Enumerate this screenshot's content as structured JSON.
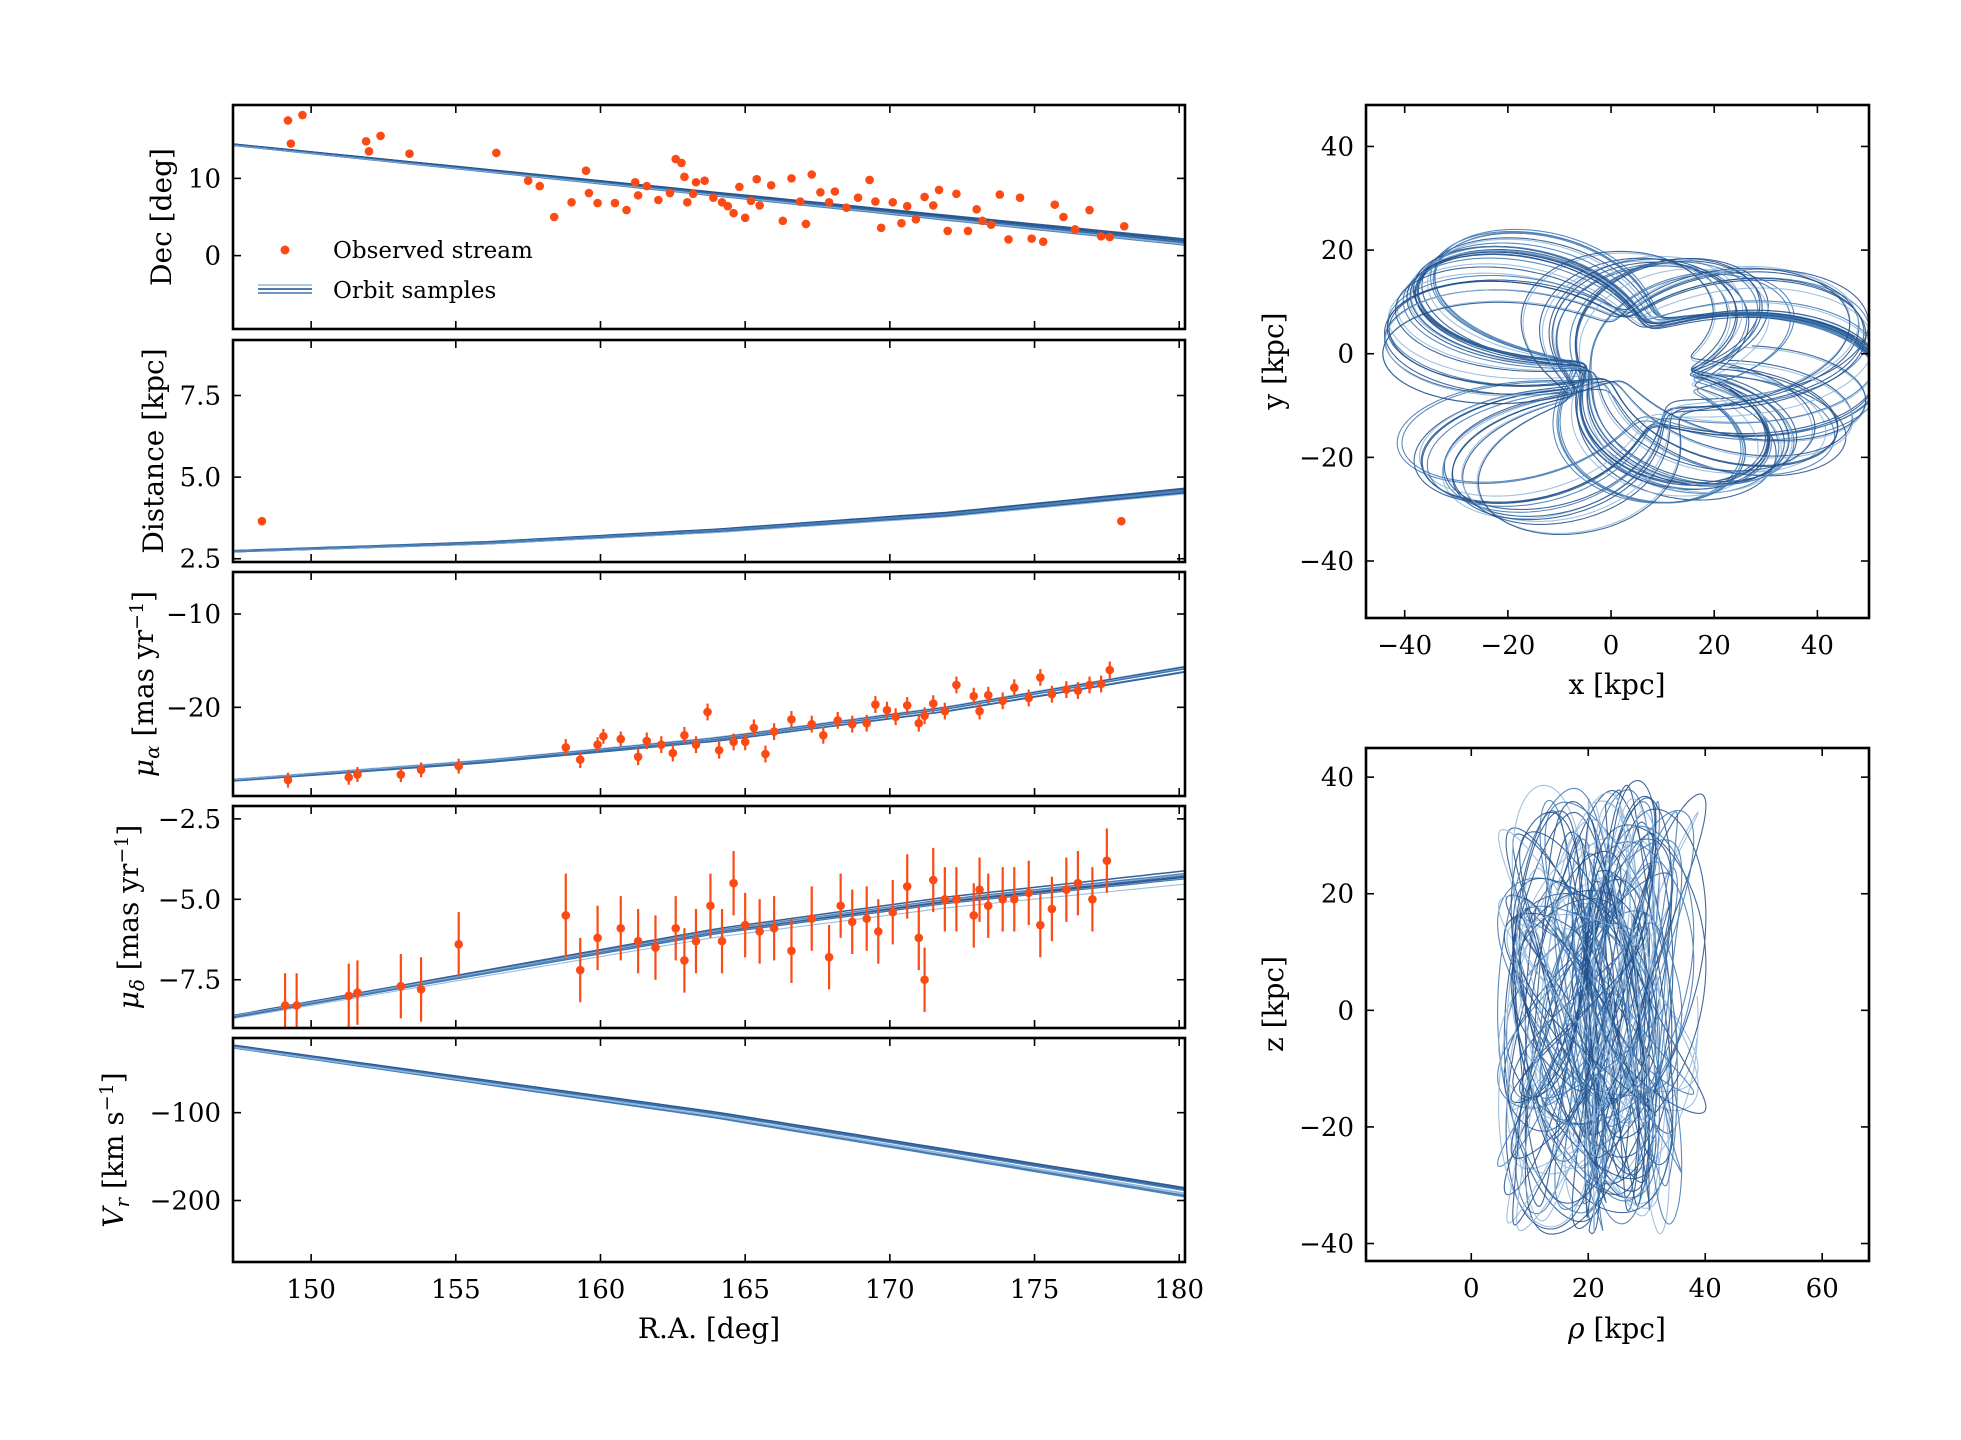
{
  "colors": {
    "observed": "#fc4a14",
    "orbit_dark": "#1f4e8a",
    "orbit_mid": "#3d75b0",
    "orbit_light": "#8fb6dc"
  },
  "chart_data": [
    {
      "id": "dec",
      "type": "scatter+line",
      "ylabel": "Dec [deg]",
      "xlim": [
        147.3,
        180.2
      ],
      "ylim": [
        -9.5,
        19.5
      ],
      "yticks": [
        0,
        10
      ],
      "ytick_labels": [
        "0",
        "10"
      ],
      "legend": {
        "placement": "lower-left",
        "entries": [
          "Observed stream",
          "Orbit samples"
        ]
      },
      "orbit": {
        "x": [
          148,
          180
        ],
        "y": [
          14.1,
          1.9
        ],
        "spread": 0.35
      },
      "observed": {
        "ra": [
          149.2,
          149.3,
          149.7,
          151.9,
          152.0,
          152.4,
          153.4,
          156.4,
          157.5,
          157.9,
          158.4,
          159.0,
          159.5,
          159.6,
          159.9,
          160.5,
          160.9,
          161.2,
          161.3,
          161.6,
          162.0,
          162.4,
          162.6,
          162.8,
          162.9,
          163.0,
          163.2,
          163.3,
          163.6,
          163.9,
          164.2,
          164.4,
          164.6,
          164.8,
          165.0,
          165.2,
          165.4,
          165.5,
          165.9,
          166.3,
          166.6,
          166.9,
          167.1,
          167.3,
          167.6,
          167.9,
          168.1,
          168.5,
          168.9,
          169.3,
          169.5,
          169.7,
          170.1,
          170.4,
          170.6,
          170.9,
          171.2,
          171.5,
          171.7,
          172.0,
          172.3,
          172.7,
          173.0,
          173.2,
          173.5,
          173.8,
          174.1,
          174.5,
          174.9,
          175.3,
          175.7,
          176.0,
          176.4,
          176.9,
          177.3,
          177.6,
          178.1
        ],
        "dec": [
          17.5,
          14.5,
          18.2,
          14.8,
          13.5,
          15.5,
          13.2,
          13.3,
          9.7,
          9.0,
          5.0,
          6.9,
          11.0,
          8.1,
          6.8,
          6.8,
          5.9,
          9.5,
          7.8,
          9.0,
          7.2,
          8.1,
          12.5,
          12.0,
          10.2,
          6.9,
          8.0,
          9.5,
          9.7,
          7.5,
          6.9,
          6.4,
          5.5,
          8.9,
          4.9,
          7.1,
          9.9,
          6.5,
          9.1,
          4.5,
          10.0,
          7.0,
          4.1,
          10.5,
          8.2,
          6.9,
          8.3,
          6.2,
          7.5,
          9.8,
          7.0,
          3.6,
          6.9,
          4.2,
          6.4,
          4.7,
          7.6,
          6.5,
          8.5,
          3.2,
          8.0,
          3.2,
          6.0,
          4.5,
          4.0,
          7.9,
          2.1,
          7.5,
          2.2,
          1.8,
          6.6,
          5.0,
          3.4,
          5.9,
          2.5,
          2.4,
          3.8
        ]
      }
    },
    {
      "id": "distance",
      "type": "scatter+line",
      "ylabel": "Distance [kpc]",
      "xlim": [
        147.3,
        180.2
      ],
      "ylim": [
        2.4,
        9.2
      ],
      "yticks": [
        2.5,
        5.0,
        7.5
      ],
      "ytick_labels": [
        "2.5",
        "5.0",
        "7.5"
      ],
      "orbit": {
        "x": [
          148,
          156,
          164,
          172,
          180
        ],
        "y": [
          2.75,
          2.98,
          3.35,
          3.85,
          4.55
        ],
        "spread": 0.07
      },
      "observed": {
        "ra": [
          148.3,
          178.0
        ],
        "dist": [
          3.65,
          3.65
        ]
      }
    },
    {
      "id": "pmra",
      "type": "errorbar+line",
      "ylabel_main": "μ",
      "ylabel_sub": "α",
      "ylabel_rest": " [mas yr",
      "ylabel_sup": "−1",
      "ylabel_end": "]",
      "xlim": [
        147.3,
        180.2
      ],
      "ylim": [
        -29.5,
        -5.5
      ],
      "yticks": [
        -20,
        -10
      ],
      "ytick_labels": [
        "−20",
        "−10"
      ],
      "orbit": {
        "x": [
          148,
          156,
          164,
          172,
          180
        ],
        "y": [
          -27.6,
          -25.7,
          -23.3,
          -20.0,
          -15.8
        ],
        "spread": 0.35
      },
      "observed": {
        "ra": [
          149.2,
          151.3,
          151.6,
          153.1,
          153.8,
          155.1,
          158.8,
          159.3,
          159.9,
          160.1,
          160.7,
          161.3,
          161.6,
          162.1,
          162.5,
          162.9,
          163.3,
          163.7,
          164.1,
          164.6,
          165.0,
          165.3,
          165.7,
          166.0,
          166.6,
          167.3,
          167.7,
          168.2,
          168.7,
          169.2,
          169.5,
          169.9,
          170.2,
          170.6,
          171.0,
          171.2,
          171.5,
          171.9,
          172.3,
          172.9,
          173.1,
          173.4,
          173.9,
          174.3,
          174.8,
          175.2,
          175.6,
          176.1,
          176.5,
          176.9,
          177.3,
          177.6
        ],
        "pmra": [
          -27.8,
          -27.5,
          -27.2,
          -27.2,
          -26.7,
          -26.3,
          -24.3,
          -25.6,
          -24.0,
          -23.1,
          -23.4,
          -25.3,
          -23.6,
          -24.0,
          -24.9,
          -23.0,
          -24.0,
          -20.5,
          -24.6,
          -23.7,
          -23.7,
          -22.2,
          -25.0,
          -22.6,
          -21.3,
          -21.8,
          -23.0,
          -21.4,
          -21.8,
          -21.7,
          -19.7,
          -20.3,
          -21.0,
          -19.8,
          -21.7,
          -20.9,
          -19.6,
          -20.4,
          -17.6,
          -18.8,
          -20.4,
          -18.7,
          -19.3,
          -17.9,
          -19.0,
          -16.8,
          -18.6,
          -18.1,
          -18.2,
          -17.6,
          -17.5,
          -16.0
        ],
        "err": [
          0.8,
          0.8,
          0.8,
          0.8,
          0.8,
          0.8,
          0.9,
          0.9,
          0.8,
          0.8,
          0.8,
          0.9,
          0.9,
          0.9,
          0.9,
          0.9,
          0.9,
          0.9,
          0.9,
          0.9,
          0.9,
          0.9,
          0.9,
          0.9,
          0.9,
          0.9,
          0.9,
          0.9,
          0.9,
          0.9,
          0.9,
          0.9,
          0.9,
          0.9,
          0.9,
          0.9,
          0.9,
          0.9,
          0.9,
          0.9,
          0.9,
          0.9,
          0.9,
          0.9,
          0.9,
          0.9,
          0.9,
          0.9,
          0.9,
          0.9,
          0.9,
          0.9
        ]
      }
    },
    {
      "id": "pmdec",
      "type": "errorbar+line",
      "ylabel_main": "μ",
      "ylabel_sub": "δ",
      "ylabel_rest": " [mas yr",
      "ylabel_sup": "−1",
      "ylabel_end": "]",
      "xlim": [
        147.3,
        180.2
      ],
      "ylim": [
        -9.0,
        -2.1
      ],
      "yticks": [
        -7.5,
        -5.0,
        -2.5
      ],
      "ytick_labels": [
        "−7.5",
        "−5.0",
        "−2.5"
      ],
      "orbit": {
        "x": [
          148,
          156,
          164,
          172,
          180
        ],
        "y": [
          -8.55,
          -7.3,
          -6.05,
          -5.1,
          -4.35
        ],
        "spread": 0.12
      },
      "observed": {
        "ra": [
          149.1,
          149.5,
          151.3,
          151.6,
          153.1,
          153.8,
          155.1,
          158.8,
          159.3,
          159.9,
          160.7,
          161.3,
          161.9,
          162.6,
          162.9,
          163.3,
          163.8,
          164.2,
          164.6,
          165.0,
          165.5,
          166.0,
          166.6,
          167.3,
          167.9,
          168.3,
          168.7,
          169.2,
          169.6,
          170.1,
          170.6,
          171.0,
          171.2,
          171.5,
          171.9,
          172.3,
          172.9,
          173.1,
          173.4,
          173.9,
          174.3,
          174.8,
          175.2,
          175.6,
          176.1,
          176.5,
          177.0,
          177.5
        ],
        "pmdec": [
          -8.3,
          -8.3,
          -8.0,
          -7.9,
          -7.7,
          -7.8,
          -6.4,
          -5.5,
          -7.2,
          -6.2,
          -5.9,
          -6.3,
          -6.5,
          -5.9,
          -6.9,
          -6.3,
          -5.2,
          -6.3,
          -4.5,
          -5.8,
          -6.0,
          -5.9,
          -6.6,
          -5.6,
          -6.8,
          -5.2,
          -5.7,
          -5.6,
          -6.0,
          -5.4,
          -4.6,
          -6.2,
          -7.5,
          -4.4,
          -5.0,
          -5.0,
          -5.5,
          -4.7,
          -5.2,
          -5.0,
          -5.0,
          -4.8,
          -5.8,
          -5.3,
          -4.7,
          -4.5,
          -5.0,
          -3.8
        ],
        "err": [
          1.0,
          1.0,
          1.0,
          1.0,
          1.0,
          1.0,
          1.0,
          1.3,
          1.0,
          1.0,
          1.0,
          1.0,
          1.0,
          1.0,
          1.0,
          1.0,
          1.0,
          1.0,
          1.0,
          1.0,
          1.0,
          1.0,
          1.0,
          1.0,
          1.0,
          1.0,
          1.0,
          1.0,
          1.0,
          1.0,
          1.0,
          1.0,
          1.0,
          1.0,
          1.0,
          1.0,
          1.0,
          1.0,
          1.0,
          1.0,
          1.0,
          1.0,
          1.0,
          1.0,
          1.0,
          1.0,
          1.0,
          1.0
        ]
      }
    },
    {
      "id": "vr",
      "type": "line",
      "ylabel_main": "V",
      "ylabel_sub": "r",
      "ylabel_rest": " [km s",
      "ylabel_sup": "−1",
      "ylabel_end": "]",
      "xlabel": "R.A. [deg]",
      "xlim": [
        147.3,
        180.2
      ],
      "ylim": [
        -270,
        -15
      ],
      "yticks": [
        -200,
        -100
      ],
      "ytick_labels": [
        "−200",
        "−100"
      ],
      "xticks": [
        150,
        155,
        160,
        165,
        170,
        175,
        180
      ],
      "xtick_labels": [
        "150",
        "155",
        "160",
        "165",
        "170",
        "175",
        "180"
      ],
      "orbit": {
        "x": [
          148,
          156,
          164,
          172,
          180
        ],
        "y": [
          -28,
          -65,
          -102,
          -145,
          -188
        ],
        "spread": 5
      }
    },
    {
      "id": "xy",
      "type": "orbit",
      "xlabel": "x [kpc]",
      "ylabel": "y [kpc]",
      "xlim": [
        -47.5,
        50
      ],
      "ylim": [
        -51,
        48
      ],
      "xticks": [
        -40,
        -20,
        0,
        20,
        40
      ],
      "xtick_labels": [
        "−40",
        "−20",
        "0",
        "20",
        "40"
      ],
      "yticks": [
        -40,
        -20,
        0,
        20,
        40
      ],
      "ytick_labels": [
        "−40",
        "−20",
        "0",
        "20",
        "40"
      ]
    },
    {
      "id": "rz",
      "type": "orbit",
      "xlabel_main": "ρ",
      "xlabel_rest": " [kpc]",
      "ylabel": "z [kpc]",
      "xlim": [
        -18,
        68
      ],
      "ylim": [
        -43,
        45
      ],
      "xticks": [
        0,
        20,
        40,
        60
      ],
      "xtick_labels": [
        "0",
        "20",
        "40",
        "60"
      ],
      "yticks": [
        -40,
        -20,
        0,
        20,
        40
      ],
      "ytick_labels": [
        "−40",
        "−20",
        "0",
        "20",
        "40"
      ]
    }
  ]
}
